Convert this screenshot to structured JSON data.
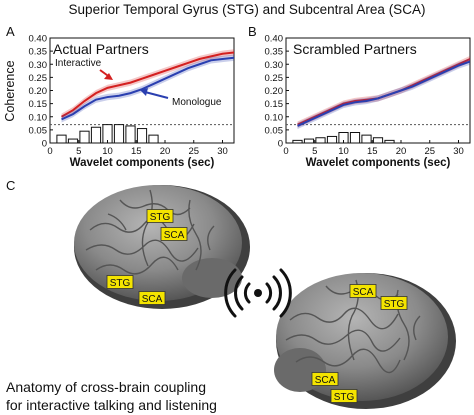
{
  "figure_title": "Superior Temporal Gyrus (STG) and Subcentral Area (SCA)",
  "panel_c_label": "C",
  "caption_lines": [
    "Anatomy of cross-brain coupling",
    "for interactive talking and listening"
  ],
  "region_labels": {
    "brain1": [
      "STG",
      "SCA",
      "STG",
      "SCA"
    ],
    "brain2": [
      "SCA",
      "STG",
      "SCA",
      "STG"
    ]
  },
  "icons": {
    "signal": "wireless-signal-icon",
    "brain": "brain-illustration"
  },
  "chart_data": [
    {
      "type": "line",
      "panel": "A",
      "title": "Actual Partners",
      "xlabel": "Wavelet components (sec)",
      "ylabel": "Coherence",
      "xlim": [
        0,
        32
      ],
      "ylim": [
        0,
        0.4
      ],
      "xticks": [
        "0",
        "5",
        "10",
        "15",
        "20",
        "25",
        "30"
      ],
      "yticks": [
        "0",
        "0.05",
        "0.10",
        "0.15",
        "0.20",
        "0.25",
        "0.30",
        "0.35",
        "0.40"
      ],
      "threshold": 0.07,
      "annotations": [
        "Interactive",
        "Monologue"
      ],
      "x": [
        2,
        4,
        6,
        8,
        10,
        12,
        14,
        16,
        18,
        20,
        22,
        24,
        26,
        28,
        30,
        32
      ],
      "series": [
        {
          "name": "Interactive",
          "color": "#d42020",
          "values": [
            0.1,
            0.125,
            0.16,
            0.19,
            0.21,
            0.22,
            0.23,
            0.245,
            0.26,
            0.275,
            0.29,
            0.305,
            0.32,
            0.33,
            0.34,
            0.345
          ]
        },
        {
          "name": "Monologue",
          "color": "#2a3fb0",
          "values": [
            0.09,
            0.11,
            0.14,
            0.165,
            0.175,
            0.18,
            0.19,
            0.205,
            0.225,
            0.245,
            0.265,
            0.285,
            0.3,
            0.315,
            0.32,
            0.325
          ]
        }
      ],
      "bars": {
        "x": [
          2,
          4,
          6,
          8,
          10,
          12,
          14,
          16,
          18
        ],
        "values": [
          0.03,
          0.015,
          0.045,
          0.06,
          0.07,
          0.07,
          0.065,
          0.055,
          0.03
        ]
      }
    },
    {
      "type": "line",
      "panel": "B",
      "title": "Scrambled Partners",
      "xlabel": "Wavelet components (sec)",
      "ylabel": "",
      "xlim": [
        0,
        32
      ],
      "ylim": [
        0,
        0.4
      ],
      "xticks": [
        "0",
        "5",
        "10",
        "15",
        "20",
        "25",
        "30"
      ],
      "yticks": [
        "0",
        "0.05",
        "0.10",
        "0.15",
        "0.20",
        "0.25",
        "0.30",
        "0.35",
        "0.40"
      ],
      "threshold": 0.07,
      "annotations": [],
      "x": [
        2,
        4,
        6,
        8,
        10,
        12,
        14,
        16,
        18,
        20,
        22,
        24,
        26,
        28,
        30,
        32
      ],
      "series": [
        {
          "name": "Interactive",
          "color": "#d42020",
          "values": [
            0.07,
            0.09,
            0.11,
            0.13,
            0.15,
            0.16,
            0.165,
            0.17,
            0.185,
            0.2,
            0.22,
            0.24,
            0.26,
            0.28,
            0.3,
            0.32
          ]
        },
        {
          "name": "Monologue",
          "color": "#2a3fb0",
          "values": [
            0.065,
            0.085,
            0.105,
            0.125,
            0.145,
            0.155,
            0.16,
            0.17,
            0.185,
            0.2,
            0.215,
            0.235,
            0.255,
            0.275,
            0.295,
            0.31
          ]
        }
      ],
      "bars": {
        "x": [
          2,
          4,
          6,
          8,
          10,
          12,
          14,
          16,
          18
        ],
        "values": [
          0.01,
          0.015,
          0.02,
          0.025,
          0.04,
          0.04,
          0.03,
          0.02,
          0.01
        ]
      }
    }
  ]
}
